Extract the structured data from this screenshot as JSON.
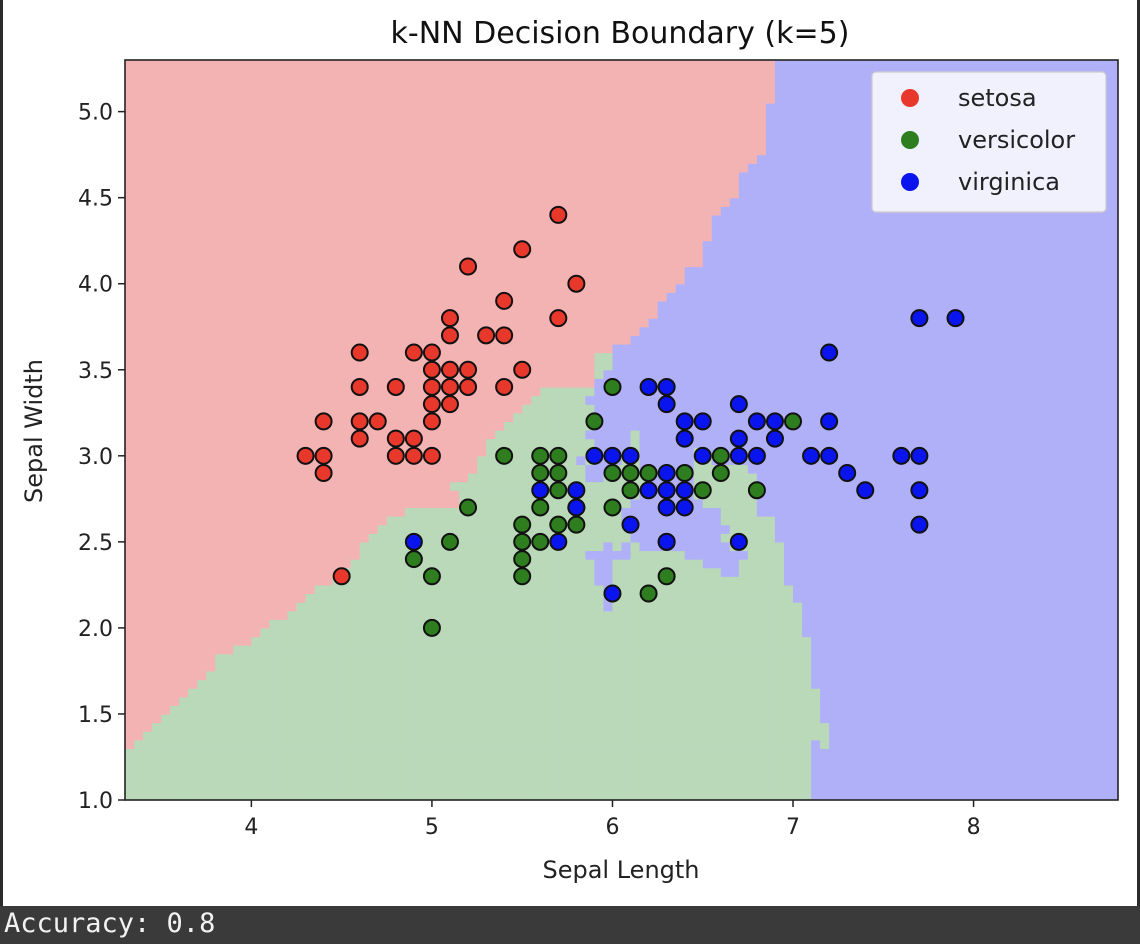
{
  "chart_data": {
    "type": "scatter",
    "title": "k-NN Decision Boundary (k=5)",
    "xlabel": "Sepal Length",
    "ylabel": "Sepal Width",
    "xlim": [
      3.3,
      8.8
    ],
    "ylim": [
      1.0,
      5.3
    ],
    "xticks": [
      4,
      5,
      6,
      7,
      8
    ],
    "yticks": [
      1.0,
      1.5,
      2.0,
      2.5,
      3.0,
      3.5,
      4.0,
      4.5,
      5.0
    ],
    "legend_position": "top-right",
    "background_regions": "decision regions of a 5-nearest-neighbour classifier (setosa / versicolor / virginica)",
    "region_colors": {
      "setosa": "#f4b3b3",
      "versicolor": "#b9d9b9",
      "virginica": "#b0b0f8"
    },
    "series": [
      {
        "name": "setosa",
        "color": "#e8382c",
        "points": [
          [
            4.3,
            3.0
          ],
          [
            4.4,
            3.0
          ],
          [
            4.4,
            3.2
          ],
          [
            4.4,
            2.9
          ],
          [
            4.5,
            2.3
          ],
          [
            4.6,
            3.1
          ],
          [
            4.6,
            3.4
          ],
          [
            4.6,
            3.6
          ],
          [
            4.6,
            3.2
          ],
          [
            4.7,
            3.2
          ],
          [
            4.8,
            3.0
          ],
          [
            4.8,
            3.1
          ],
          [
            4.8,
            3.4
          ],
          [
            4.9,
            3.0
          ],
          [
            4.9,
            3.1
          ],
          [
            4.9,
            3.6
          ],
          [
            5.0,
            3.0
          ],
          [
            5.0,
            3.2
          ],
          [
            5.0,
            3.3
          ],
          [
            5.0,
            3.4
          ],
          [
            5.0,
            3.5
          ],
          [
            5.0,
            3.6
          ],
          [
            5.1,
            3.3
          ],
          [
            5.1,
            3.4
          ],
          [
            5.1,
            3.5
          ],
          [
            5.1,
            3.7
          ],
          [
            5.1,
            3.8
          ],
          [
            5.2,
            3.4
          ],
          [
            5.2,
            3.5
          ],
          [
            5.2,
            4.1
          ],
          [
            5.3,
            3.7
          ],
          [
            5.4,
            3.4
          ],
          [
            5.4,
            3.7
          ],
          [
            5.4,
            3.9
          ],
          [
            5.5,
            3.5
          ],
          [
            5.5,
            4.2
          ],
          [
            5.7,
            3.8
          ],
          [
            5.7,
            4.4
          ],
          [
            5.8,
            4.0
          ]
        ]
      },
      {
        "name": "versicolor",
        "color": "#2e7d1e",
        "points": [
          [
            4.9,
            2.4
          ],
          [
            5.0,
            2.0
          ],
          [
            5.0,
            2.3
          ],
          [
            5.1,
            2.5
          ],
          [
            5.2,
            2.7
          ],
          [
            5.4,
            3.0
          ],
          [
            5.5,
            2.3
          ],
          [
            5.5,
            2.4
          ],
          [
            5.5,
            2.5
          ],
          [
            5.5,
            2.6
          ],
          [
            5.6,
            2.5
          ],
          [
            5.6,
            2.7
          ],
          [
            5.6,
            2.9
          ],
          [
            5.6,
            3.0
          ],
          [
            5.7,
            2.6
          ],
          [
            5.7,
            2.8
          ],
          [
            5.7,
            2.9
          ],
          [
            5.7,
            3.0
          ],
          [
            5.8,
            2.6
          ],
          [
            5.8,
            2.7
          ],
          [
            5.9,
            3.2
          ],
          [
            6.0,
            2.7
          ],
          [
            6.0,
            2.9
          ],
          [
            6.0,
            3.4
          ],
          [
            6.1,
            2.8
          ],
          [
            6.1,
            2.9
          ],
          [
            6.2,
            2.2
          ],
          [
            6.2,
            2.9
          ],
          [
            6.3,
            2.3
          ],
          [
            6.3,
            2.5
          ],
          [
            6.4,
            2.9
          ],
          [
            6.5,
            2.8
          ],
          [
            6.6,
            2.9
          ],
          [
            6.6,
            3.0
          ],
          [
            6.8,
            2.8
          ],
          [
            7.0,
            3.2
          ]
        ]
      },
      {
        "name": "virginica",
        "color": "#0a14ee",
        "points": [
          [
            4.9,
            2.5
          ],
          [
            5.6,
            2.8
          ],
          [
            5.7,
            2.5
          ],
          [
            5.8,
            2.7
          ],
          [
            5.8,
            2.8
          ],
          [
            5.9,
            3.0
          ],
          [
            6.0,
            2.2
          ],
          [
            6.0,
            3.0
          ],
          [
            6.1,
            2.6
          ],
          [
            6.1,
            3.0
          ],
          [
            6.2,
            2.8
          ],
          [
            6.2,
            3.4
          ],
          [
            6.3,
            2.5
          ],
          [
            6.3,
            2.7
          ],
          [
            6.3,
            2.8
          ],
          [
            6.3,
            2.9
          ],
          [
            6.3,
            3.3
          ],
          [
            6.3,
            3.4
          ],
          [
            6.4,
            2.7
          ],
          [
            6.4,
            2.8
          ],
          [
            6.4,
            3.1
          ],
          [
            6.4,
            3.2
          ],
          [
            6.5,
            3.0
          ],
          [
            6.5,
            3.2
          ],
          [
            6.7,
            2.5
          ],
          [
            6.7,
            3.0
          ],
          [
            6.7,
            3.1
          ],
          [
            6.7,
            3.3
          ],
          [
            6.8,
            3.0
          ],
          [
            6.8,
            3.2
          ],
          [
            6.9,
            3.1
          ],
          [
            6.9,
            3.2
          ],
          [
            7.1,
            3.0
          ],
          [
            7.2,
            3.0
          ],
          [
            7.2,
            3.2
          ],
          [
            7.2,
            3.6
          ],
          [
            7.3,
            2.9
          ],
          [
            7.4,
            2.8
          ],
          [
            7.6,
            3.0
          ],
          [
            7.7,
            2.6
          ],
          [
            7.7,
            2.8
          ],
          [
            7.7,
            3.0
          ],
          [
            7.7,
            3.8
          ],
          [
            7.9,
            3.8
          ]
        ]
      }
    ]
  },
  "console": {
    "text": "Accuracy: 0.8"
  }
}
